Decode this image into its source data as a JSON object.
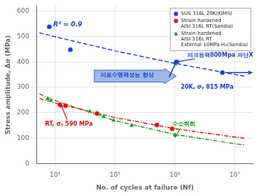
{
  "chart_data": {
    "type": "scatter",
    "xlabel": "No. of cycles at failure (Nf)",
    "ylabel": "Stress amplitude, Δσ (MPa)",
    "log": "x",
    "xlim": [
      5000,
      20000000
    ],
    "xticks": [
      {
        "value": 10000,
        "label": "10⁴"
      },
      {
        "value": 100000,
        "label": "10⁵"
      },
      {
        "value": 1000000,
        "label": "10⁶"
      },
      {
        "value": 10000000,
        "label": "10⁷"
      }
    ],
    "ylim": [
      0,
      620
    ],
    "yticks": [
      0,
      100,
      200,
      300,
      400,
      500,
      600
    ],
    "grid": true,
    "legend": "upper right",
    "series": [
      {
        "name": "SUS 316L 20K(KIMS)",
        "color": "#1a3fd4",
        "marker": "circle",
        "x": [
          8000,
          18000,
          1050000,
          6200000
        ],
        "values": [
          538,
          448,
          400,
          358
        ]
      },
      {
        "name": "Strain-hardened\nAISI 316L RT(Sandia)",
        "color": "#dd1111",
        "marker": "circle",
        "x": [
          12000,
          15000,
          50000,
          500000,
          900000
        ],
        "values": [
          232,
          228,
          197,
          152,
          137
        ]
      },
      {
        "name": "Strain-hardened\nAISI 316L RT\nExternal 10MPa H₂(Sandia)",
        "color": "#119911",
        "marker": "triangle",
        "x": [
          7500,
          8500,
          38000,
          55000,
          65000,
          95000,
          190000,
          1000000
        ],
        "values": [
          255,
          248,
          205,
          193,
          185,
          170,
          150,
          112
        ]
      },
      {
        "type": "line",
        "line_style": "dashed",
        "color": "#1a3fd4",
        "x": [
          5500,
          10000,
          100000,
          1000000,
          10000000,
          15000000
        ],
        "values": [
          514.6,
          499.0,
          443.6,
          394.2,
          350.4,
          343.2
        ]
      },
      {
        "type": "line",
        "line_style": "dashdot",
        "color": "#dd1111",
        "x": [
          5500,
          10000,
          100000,
          1000000,
          10000000,
          15000000
        ],
        "values": [
          256.3,
          238.6,
          181.1,
          137.4,
          104.3,
          99.4
        ]
      },
      {
        "type": "line",
        "line_style": "dashdot",
        "color": "#119911",
        "x": [
          5500,
          10000,
          100000,
          1000000,
          10000000,
          15000000
        ],
        "values": [
          274.3,
          248.2,
          168.8,
          114.8,
          78.1,
          73.0
        ]
      }
    ],
    "annotations": [
      {
        "text": "R² = 0.9",
        "color": "#1a3fd4"
      },
      {
        "text": "피로수명력성능 향상",
        "color": "#1a3fd4",
        "arrow": "block"
      },
      {
        "text": "RT, σᵧ 590 MPa",
        "color": "#dd1111",
        "x": 6800,
        "y": 148,
        "arrow": [
          12500,
          232
        ]
      },
      {
        "text": "피크응력800Mpa 파단X",
        "color": "#1a3fd4",
        "x": 1600000,
        "y": 420,
        "arrow": [
          1050000,
          400
        ]
      },
      {
        "color": "#1a3fd4",
        "x": 7000000,
        "y": 358,
        "arrow": [
          19000000,
          358
        ]
      },
      {
        "text": "20K, σᵧ 815 MPa",
        "color": "#1a3fd4",
        "x": 1250000,
        "y": 295
      },
      {
        "text": "수소취회",
        "color": "#119911",
        "x": 900000,
        "y": 148,
        "arrow": [
          1000000,
          105
        ]
      },
      {
        "color": "#1a3fd4",
        "x": 800000,
        "y": 340,
        "arrow": [
          1050000,
          400
        ]
      }
    ]
  }
}
